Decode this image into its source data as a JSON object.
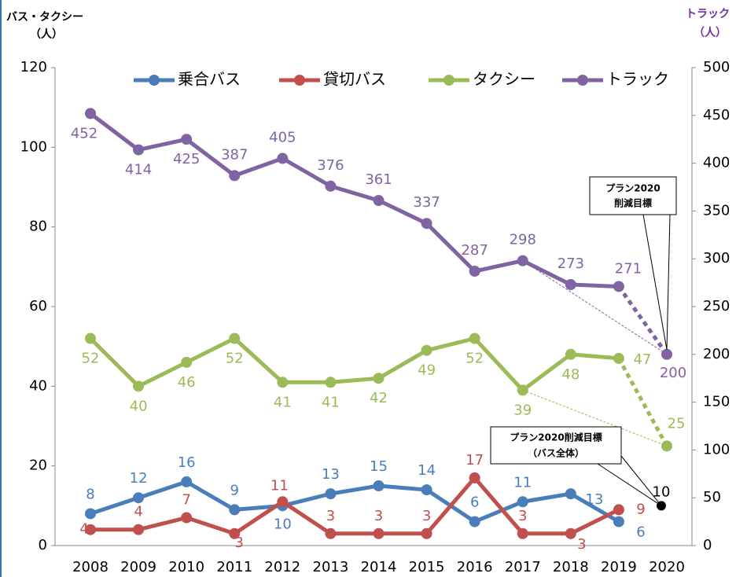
{
  "chart_data": {
    "type": "line",
    "ylabel": [
      "バス・タクシー",
      "（人）"
    ],
    "y2label": [
      "トラック",
      "（人）"
    ],
    "categories": [
      "2008",
      "2009",
      "2010",
      "2011",
      "2012",
      "2013",
      "2014",
      "2015",
      "2016",
      "2017",
      "2018",
      "2019",
      "2020"
    ],
    "ylim": [
      0,
      120
    ],
    "yticks": [
      0,
      20,
      40,
      60,
      80,
      100,
      120
    ],
    "y2lim": [
      0,
      500
    ],
    "y2ticks": [
      0,
      50,
      100,
      150,
      200,
      250,
      300,
      350,
      400,
      450,
      500
    ],
    "legend": "top",
    "series": [
      {
        "name": "乗合バス",
        "color": "#4a7ebb",
        "values": [
          8,
          12,
          16,
          9,
          10,
          13,
          15,
          14,
          6,
          11,
          13,
          6,
          null
        ]
      },
      {
        "name": "貸切バス",
        "color": "#c0504d",
        "values": [
          4,
          4,
          7,
          3,
          11,
          3,
          3,
          3,
          17,
          3,
          3,
          9,
          null
        ]
      },
      {
        "name": "タクシー",
        "color": "#9bbb59",
        "values": [
          52,
          40,
          46,
          52,
          41,
          41,
          42,
          49,
          52,
          39,
          48,
          47,
          25
        ]
      },
      {
        "name": "トラック",
        "color": "#8064a2",
        "axis": "y2",
        "values": [
          452,
          414,
          425,
          387,
          405,
          376,
          361,
          337,
          287,
          298,
          273,
          271,
          200
        ]
      }
    ],
    "bus_target": {
      "value": 10,
      "color": "#000000",
      "label": [
        "プラン2020削減目標",
        "（バス全体）"
      ]
    },
    "truck_target_label": [
      "プラン2020",
      "削減目標"
    ]
  }
}
